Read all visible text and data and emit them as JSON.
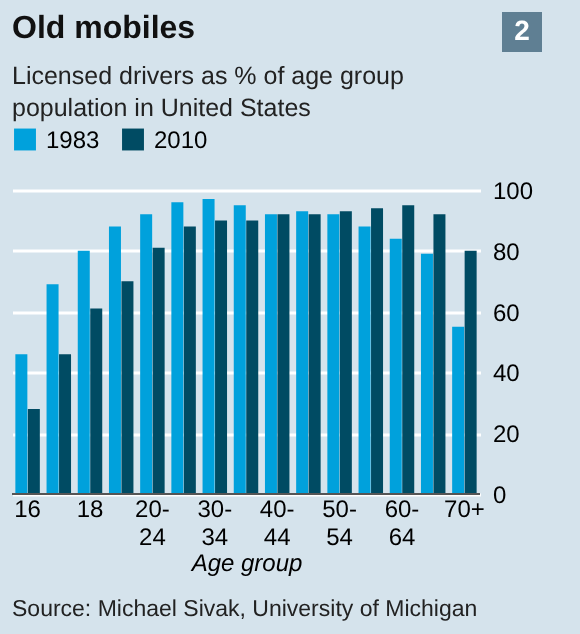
{
  "chart_data": {
    "type": "bar",
    "title": "Old mobiles",
    "subtitle": "Licensed drivers as % of age group population in United States",
    "xlabel": "Age group",
    "categories": [
      "16",
      null,
      "18",
      null,
      "20-24",
      null,
      "30-34",
      null,
      "40-44",
      null,
      "50-54",
      null,
      "60-64",
      null,
      "70+"
    ],
    "series": [
      {
        "name": "1983",
        "color": "#00a1dc",
        "values": [
          46,
          69,
          80,
          88,
          92,
          96,
          97,
          95,
          92,
          93,
          92,
          88,
          84,
          79,
          55
        ]
      },
      {
        "name": "2010",
        "color": "#004b63",
        "values": [
          28,
          46,
          61,
          70,
          81,
          88,
          90,
          90,
          92,
          92,
          93,
          94,
          95,
          92,
          80
        ]
      }
    ],
    "ylim": [
      0,
      100
    ],
    "yticks": [
      0,
      20,
      40,
      60,
      80,
      100
    ],
    "grid": "y",
    "legend": "top left",
    "annotations": [
      "2",
      "Source: Michael Sivak, University of Michigan"
    ]
  }
}
